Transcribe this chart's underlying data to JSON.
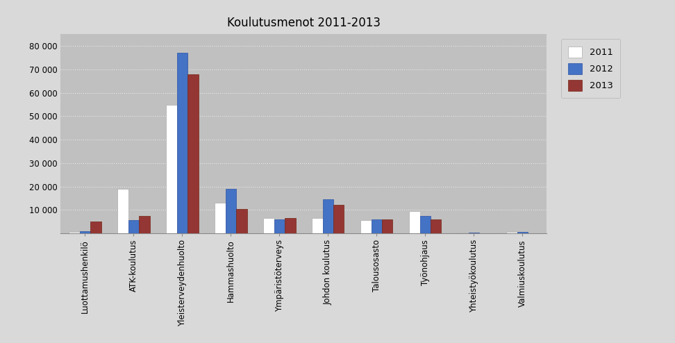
{
  "title": "Koulutusmenot 2011-2013",
  "categories": [
    "Luottamushenkilö",
    "ATK-koulutus",
    "Yleisterveydenhuolto",
    "Hammashuolto",
    "Ympäristöterveys",
    "Johdon koulutus",
    "Talousosasto",
    "Työnohjaus",
    "Yhteistyökoulutus",
    "Valmiuskoulutus"
  ],
  "series": {
    "2011": [
      500,
      19000,
      55000,
      13000,
      6500,
      6500,
      5500,
      9500,
      300,
      500
    ],
    "2012": [
      1000,
      5500,
      77000,
      19000,
      6000,
      14500,
      6000,
      7500,
      400,
      600
    ],
    "2013": [
      5000,
      7500,
      68000,
      10500,
      6500,
      12000,
      5800,
      6000,
      0,
      0
    ]
  },
  "bar_colors": {
    "2011": "#ffffff",
    "2012": "#4472c4",
    "2013": "#943634"
  },
  "bar_edgecolors": {
    "2011": "#aaaaaa",
    "2012": "#2a52a4",
    "2013": "#742614"
  },
  "ylim": [
    0,
    85000
  ],
  "yticks": [
    0,
    10000,
    20000,
    30000,
    40000,
    50000,
    60000,
    70000,
    80000
  ],
  "ytick_labels": [
    "",
    "10 000",
    "20 000",
    "30 000",
    "40 000",
    "50 000",
    "60 000",
    "70 000",
    "80 000"
  ],
  "background_color": "#d9d9d9",
  "plot_bg_color": "#c0c0c0",
  "grid_color": "#e8e8e8",
  "title_fontsize": 12,
  "tick_fontsize": 8.5,
  "legend_fontsize": 9.5,
  "bar_width": 0.22
}
